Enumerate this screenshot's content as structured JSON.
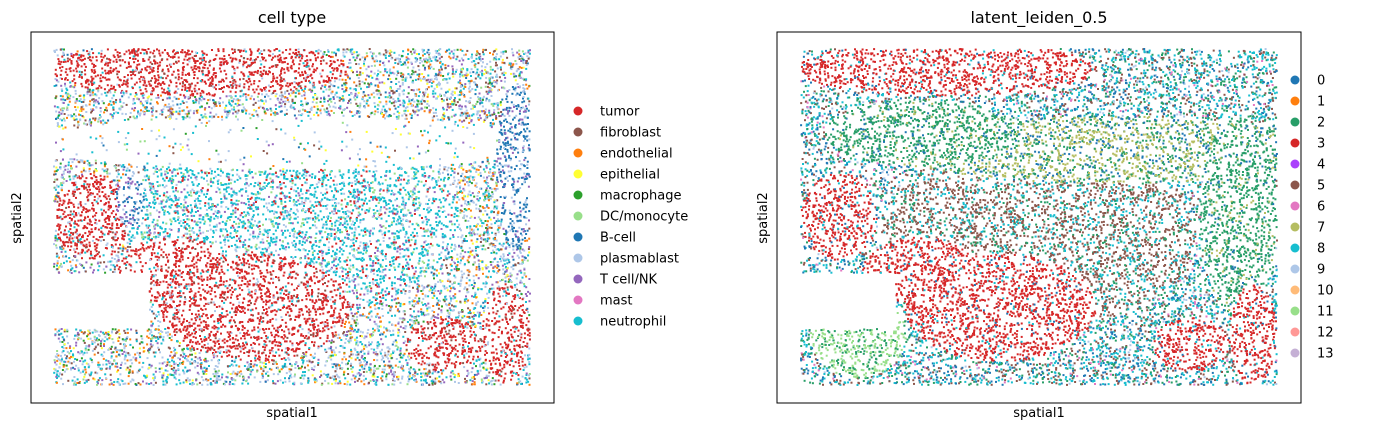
{
  "chart_data": [
    {
      "type": "scatter",
      "title": "cell type",
      "xlabel": "spatial1",
      "ylabel": "spatial2",
      "grid": false,
      "ticks": "none",
      "legend_placement": "right",
      "series": [
        {
          "name": "tumor",
          "color": "#d62728"
        },
        {
          "name": "fibroblast",
          "color": "#8c564b"
        },
        {
          "name": "endothelial",
          "color": "#ff7f0e"
        },
        {
          "name": "epithelial",
          "color": "#ffff33"
        },
        {
          "name": "macrophage",
          "color": "#2ca02c"
        },
        {
          "name": "DC/monocyte",
          "color": "#98df8a"
        },
        {
          "name": "B-cell",
          "color": "#1f77b4"
        },
        {
          "name": "plasmablast",
          "color": "#aec7e8"
        },
        {
          "name": "T cell/NK",
          "color": "#9467bd"
        },
        {
          "name": "mast",
          "color": "#e377c2"
        },
        {
          "name": "neutrophil",
          "color": "#17becf"
        }
      ]
    },
    {
      "type": "scatter",
      "title": "latent_leiden_0.5",
      "xlabel": "spatial1",
      "ylabel": "spatial2",
      "grid": false,
      "ticks": "none",
      "legend_placement": "right",
      "series": [
        {
          "name": "0",
          "color": "#1f77b4"
        },
        {
          "name": "1",
          "color": "#ff7f0e"
        },
        {
          "name": "2",
          "color": "#279e68"
        },
        {
          "name": "3",
          "color": "#d62728"
        },
        {
          "name": "4",
          "color": "#aa40fc"
        },
        {
          "name": "5",
          "color": "#8c564b"
        },
        {
          "name": "6",
          "color": "#e377c2"
        },
        {
          "name": "7",
          "color": "#b5bd61"
        },
        {
          "name": "8",
          "color": "#17becf"
        },
        {
          "name": "9",
          "color": "#aec7e8"
        },
        {
          "name": "10",
          "color": "#ffbb78"
        },
        {
          "name": "11",
          "color": "#98df8a"
        },
        {
          "name": "12",
          "color": "#ff9896"
        },
        {
          "name": "13",
          "color": "#c5b0d5"
        }
      ]
    }
  ]
}
